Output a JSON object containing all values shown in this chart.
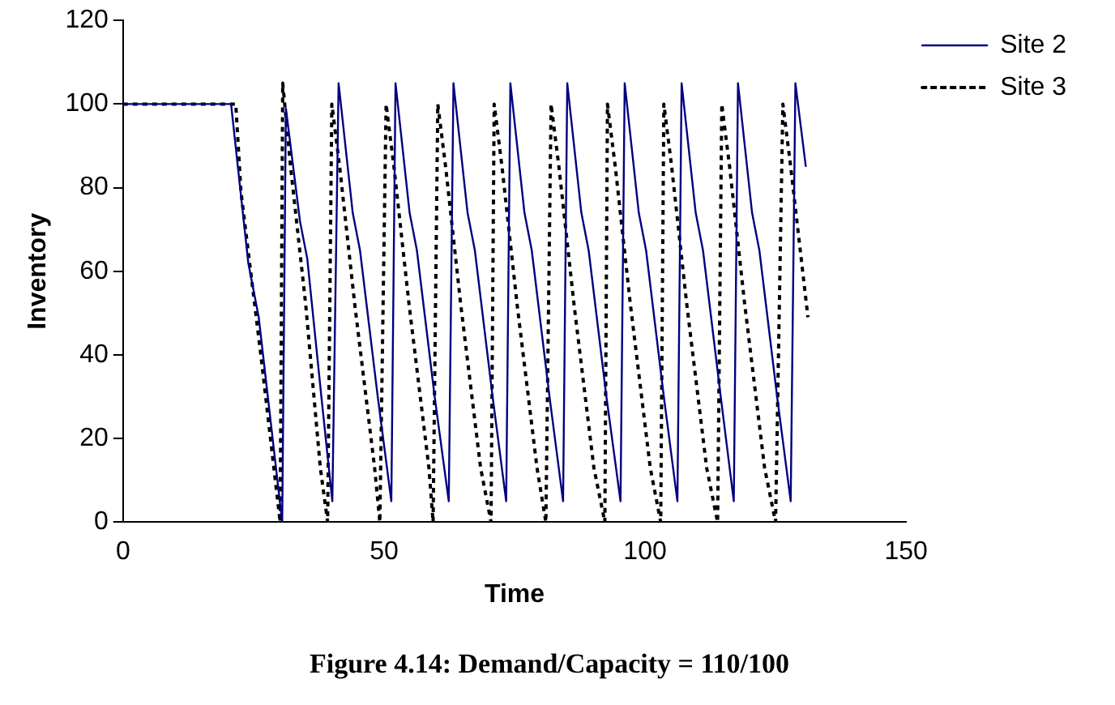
{
  "chart_data": {
    "type": "line",
    "title": "Figure 4.14: Demand/Capacity = 110/100",
    "xlabel": "Time",
    "ylabel": "Inventory",
    "xlim": [
      0,
      150
    ],
    "xticks": [
      0,
      50,
      100,
      150
    ],
    "ylim": [
      0,
      120
    ],
    "yticks": [
      0,
      20,
      40,
      60,
      80,
      100,
      120
    ],
    "grid": false,
    "legend": "top right",
    "marker": "none",
    "series": [
      {
        "name": "Site 2",
        "color": "#000080",
        "line_style": "solid",
        "x": [
          0,
          20.7,
          24,
          26,
          30.5,
          31.2,
          33.9,
          35.3,
          38,
          40.1,
          41.3,
          44,
          45.4,
          48.8,
          51.4,
          52.2,
          54.9,
          56.3,
          59.7,
          62.4,
          63.3,
          66,
          67.4,
          70.8,
          73.4,
          74.2,
          76.9,
          78.3,
          81.7,
          84.3,
          85.1,
          87.8,
          89.2,
          92.6,
          95.3,
          96.1,
          98.8,
          100.2,
          103.6,
          106.2,
          107,
          109.7,
          111.1,
          114.5,
          117,
          117.8,
          120.5,
          121.9,
          125.3,
          127.9,
          128.8,
          130.8
        ],
        "values": [
          100,
          100,
          62,
          49,
          0,
          99,
          72,
          63,
          30,
          5,
          105,
          74,
          65,
          30,
          5,
          105,
          74,
          65,
          30,
          5,
          105,
          74,
          65,
          30,
          5,
          105,
          74,
          65,
          30,
          5,
          105,
          74,
          65,
          30,
          5,
          105,
          74,
          65,
          30,
          5,
          105,
          74,
          65,
          30,
          5,
          105,
          74,
          65,
          30,
          5,
          105,
          85
        ]
      },
      {
        "name": "Site 3",
        "color": "#000000",
        "line_style": "dotted",
        "x": [
          0,
          21.6,
          22.6,
          26.4,
          30.1,
          30.6,
          32.1,
          35,
          37.8,
          39.2,
          40,
          41.5,
          44.4,
          48.2,
          49.2,
          50.4,
          51.9,
          54.8,
          58.6,
          59.4,
          60.3,
          61.8,
          64.7,
          68.5,
          70.5,
          71.1,
          72.6,
          75.5,
          79.3,
          81,
          82,
          83.5,
          86.4,
          90.2,
          92.3,
          92.8,
          94.3,
          97.2,
          101,
          103,
          103.6,
          105.1,
          108,
          111.8,
          113.9,
          114.7,
          116.2,
          119.1,
          122.9,
          125,
          126.4,
          127.9,
          131.2
        ],
        "values": [
          100,
          100,
          79,
          40,
          0,
          105,
          85,
          52,
          13,
          0,
          100,
          85,
          52,
          13,
          0,
          100,
          85,
          52,
          13,
          0,
          100,
          85,
          52,
          13,
          0,
          100,
          85,
          52,
          13,
          0,
          100,
          85,
          52,
          13,
          0,
          100,
          85,
          52,
          13,
          0,
          100,
          85,
          52,
          13,
          0,
          100,
          85,
          52,
          13,
          0,
          100,
          85,
          49
        ]
      }
    ]
  }
}
